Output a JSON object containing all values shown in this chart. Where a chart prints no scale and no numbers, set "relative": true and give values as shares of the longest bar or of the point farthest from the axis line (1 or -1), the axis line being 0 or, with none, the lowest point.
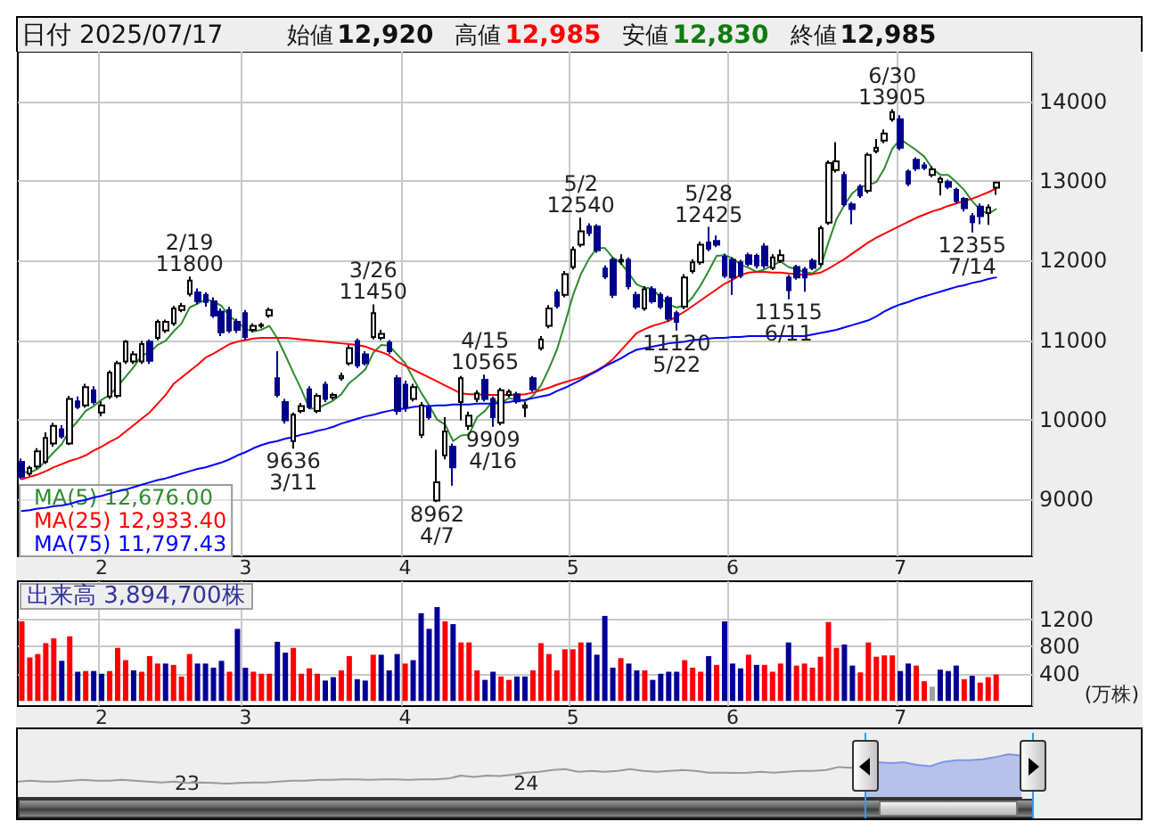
{
  "chart_data": [
    {
      "type": "other",
      "title": "日付 2025/07/17",
      "annotations": [
        "始値",
        "12,920",
        "高値",
        "12,985",
        "安値",
        "12,830",
        "終値",
        "12,985"
      ]
    },
    {
      "type": "candlestick",
      "categories": [
        null,
        null,
        null,
        null,
        null,
        null,
        null,
        null,
        null,
        null,
        "2",
        null,
        null,
        null,
        null,
        null,
        null,
        null,
        null,
        null,
        null,
        null,
        null,
        null,
        null,
        null,
        null,
        null,
        "3",
        null,
        null,
        null,
        null,
        null,
        null,
        null,
        null,
        null,
        null,
        null,
        null,
        null,
        null,
        null,
        null,
        null,
        null,
        null,
        "4",
        null,
        null,
        null,
        null,
        null,
        null,
        null,
        null,
        null,
        null,
        null,
        null,
        null,
        null,
        null,
        null,
        null,
        null,
        null,
        null,
        "5",
        null,
        null,
        null,
        null,
        null,
        null,
        null,
        null,
        null,
        null,
        null,
        null,
        null,
        null,
        null,
        null,
        null,
        null,
        null,
        "6",
        null,
        null,
        null,
        null,
        null,
        null,
        null,
        null,
        null,
        null,
        null,
        null,
        null,
        null,
        null,
        null,
        null,
        null,
        null,
        null,
        "7",
        null,
        null,
        null,
        null,
        null,
        null,
        null,
        null,
        null,
        null,
        null,
        null
      ],
      "ohlc": [
        [
          9470,
          9510,
          9250,
          9280
        ],
        [
          9320,
          9420,
          9290,
          9390
        ],
        [
          9410,
          9640,
          9380,
          9600
        ],
        [
          9470,
          9840,
          9440,
          9770
        ],
        [
          9700,
          9960,
          9660,
          9920
        ],
        [
          9880,
          9930,
          9760,
          9790
        ],
        [
          9700,
          10300,
          9680,
          10260
        ],
        [
          10230,
          10290,
          10130,
          10160
        ],
        [
          10180,
          10450,
          10150,
          10410
        ],
        [
          10370,
          10420,
          10190,
          10220
        ],
        [
          10090,
          10230,
          10040,
          10180
        ],
        [
          10290,
          10620,
          10260,
          10590
        ],
        [
          10300,
          10740,
          10270,
          10710
        ],
        [
          10730,
          11000,
          10700,
          10980
        ],
        [
          10730,
          10860,
          10700,
          10820
        ],
        [
          10730,
          10990,
          10700,
          10950
        ],
        [
          10980,
          11010,
          10700,
          10740
        ],
        [
          11030,
          11260,
          11000,
          11230
        ],
        [
          11120,
          11260,
          11090,
          11230
        ],
        [
          11210,
          11430,
          11180,
          11400
        ],
        [
          11380,
          11470,
          11350,
          11430
        ],
        [
          11580,
          11800,
          11550,
          11750
        ],
        [
          11600,
          11650,
          11450,
          11490
        ],
        [
          11570,
          11600,
          11420,
          11480
        ],
        [
          11490,
          11540,
          11280,
          11310
        ],
        [
          11360,
          11400,
          11050,
          11100
        ],
        [
          11380,
          11420,
          11090,
          11120
        ],
        [
          11230,
          11270,
          11090,
          11130
        ],
        [
          11340,
          11380,
          11000,
          11040
        ],
        [
          11130,
          11210,
          11100,
          11180
        ],
        [
          11180,
          11220,
          11150,
          11190
        ],
        [
          11310,
          11410,
          11280,
          11380
        ],
        [
          10520,
          10860,
          10280,
          10310
        ],
        [
          10220,
          10260,
          9950,
          9990
        ],
        [
          9730,
          10090,
          9636,
          10060
        ],
        [
          10110,
          10210,
          10080,
          10170
        ],
        [
          10380,
          10420,
          10130,
          10160
        ],
        [
          10110,
          10330,
          10080,
          10300
        ],
        [
          10440,
          10480,
          10220,
          10260
        ],
        [
          10280,
          10340,
          10250,
          10310
        ],
        [
          10520,
          10590,
          10490,
          10550
        ],
        [
          10710,
          10940,
          10680,
          10900
        ],
        [
          10990,
          11020,
          10650,
          10680
        ],
        [
          10820,
          10860,
          10680,
          10710
        ],
        [
          11040,
          11450,
          11010,
          11340
        ],
        [
          11030,
          11130,
          11000,
          11080
        ],
        [
          10970,
          11000,
          10830,
          10860
        ],
        [
          10520,
          10560,
          10060,
          10110
        ],
        [
          10440,
          10490,
          10100,
          10150
        ],
        [
          10260,
          10450,
          10230,
          10410
        ],
        [
          9810,
          10220,
          9770,
          10180
        ],
        [
          10150,
          10180,
          10000,
          10030
        ],
        [
          8980,
          9620,
          8962,
          9210
        ],
        [
          9550,
          10030,
          9500,
          9850
        ],
        [
          9660,
          9700,
          9170,
          9400
        ],
        [
          10220,
          10550,
          9990,
          10520
        ],
        [
          9920,
          10100,
          9870,
          10050
        ],
        [
          10260,
          10370,
          10220,
          10330
        ],
        [
          10500,
          10565,
          10230,
          10260
        ],
        [
          10260,
          10290,
          9909,
          10030
        ],
        [
          9960,
          10400,
          9930,
          10370
        ],
        [
          10310,
          10380,
          10280,
          10350
        ],
        [
          10320,
          10350,
          10200,
          10230
        ],
        [
          10150,
          10220,
          10030,
          10180
        ],
        [
          10520,
          10550,
          10350,
          10380
        ],
        [
          10900,
          11050,
          10870,
          11010
        ],
        [
          11180,
          11440,
          11150,
          11400
        ],
        [
          11600,
          11640,
          11400,
          11430
        ],
        [
          11570,
          11870,
          11540,
          11830
        ],
        [
          11920,
          12180,
          11890,
          12140
        ],
        [
          12200,
          12540,
          12170,
          12370
        ],
        [
          12430,
          12470,
          12310,
          12350
        ],
        [
          12430,
          12460,
          12100,
          12130
        ],
        [
          11900,
          11940,
          11770,
          11800
        ],
        [
          12010,
          12040,
          11530,
          11570
        ],
        [
          11990,
          12080,
          11950,
          12010
        ],
        [
          12010,
          12040,
          11640,
          11680
        ],
        [
          11570,
          11610,
          11390,
          11420
        ],
        [
          11400,
          11680,
          11370,
          11640
        ],
        [
          11640,
          11680,
          11460,
          11490
        ],
        [
          11570,
          11600,
          11390,
          11420
        ],
        [
          11530,
          11560,
          11240,
          11270
        ],
        [
          11340,
          11370,
          11120,
          11230
        ],
        [
          11420,
          11830,
          11390,
          11790
        ],
        [
          11870,
          12020,
          11840,
          11980
        ],
        [
          11980,
          12240,
          11950,
          12200
        ],
        [
          12230,
          12425,
          12120,
          12150
        ],
        [
          12250,
          12320,
          12170,
          12200
        ],
        [
          12050,
          12090,
          11780,
          11810
        ],
        [
          12010,
          12040,
          11570,
          11790
        ],
        [
          11980,
          12010,
          11780,
          11810
        ],
        [
          12070,
          12100,
          11930,
          11960
        ],
        [
          12060,
          12090,
          11900,
          11940
        ],
        [
          12180,
          12220,
          11900,
          11940
        ],
        [
          11910,
          12080,
          11880,
          12040
        ],
        [
          12000,
          12140,
          11970,
          12070
        ],
        [
          11790,
          11820,
          11515,
          11630
        ],
        [
          11920,
          11950,
          11760,
          11790
        ],
        [
          11890,
          11920,
          11610,
          11790
        ],
        [
          12000,
          12030,
          11880,
          11910
        ],
        [
          11960,
          12440,
          11930,
          12410
        ],
        [
          12480,
          13260,
          12450,
          13230
        ],
        [
          13140,
          13490,
          13110,
          13250
        ],
        [
          13080,
          13120,
          12680,
          12710
        ],
        [
          12710,
          12740,
          12460,
          12650
        ],
        [
          12930,
          12960,
          12790,
          12820
        ],
        [
          12880,
          13360,
          12850,
          13330
        ],
        [
          13380,
          13530,
          13350,
          13420
        ],
        [
          13510,
          13650,
          13480,
          13600
        ],
        [
          13780,
          13905,
          13750,
          13870
        ],
        [
          13780,
          13830,
          13390,
          13420
        ],
        [
          13120,
          13150,
          12940,
          12970
        ],
        [
          13270,
          13300,
          13130,
          13160
        ],
        [
          13200,
          13240,
          13140,
          13170
        ],
        [
          13080,
          13190,
          13050,
          13150
        ],
        [
          12990,
          13060,
          12820,
          13030
        ],
        [
          12990,
          13020,
          12900,
          12930
        ],
        [
          12890,
          12920,
          12720,
          12750
        ],
        [
          12780,
          12800,
          12620,
          12660
        ],
        [
          12560,
          12600,
          12355,
          12485
        ],
        [
          12680,
          12720,
          12460,
          12560
        ],
        [
          12600,
          12710,
          12450,
          12670
        ],
        [
          12920,
          12985,
          12830,
          12985
        ]
      ],
      "series": [
        {
          "name": "MA(5) 12,676.00",
          "type": "line",
          "color": "#2e8b2e",
          "values": [
            9350,
            9330,
            9380,
            9480,
            9590,
            9690,
            9870,
            9980,
            10110,
            10170,
            10250,
            10310,
            10420,
            10540,
            10660,
            10810,
            10840,
            10940,
            10990,
            11110,
            11210,
            11410,
            11460,
            11510,
            11490,
            11430,
            11300,
            11230,
            11140,
            11110,
            11130,
            11180,
            11020,
            10810,
            10590,
            10380,
            10140,
            10140,
            10190,
            10240,
            10320,
            10460,
            10540,
            10630,
            10840,
            10940,
            10930,
            10820,
            10710,
            10520,
            10340,
            10180,
            10000,
            9940,
            9730,
            9800,
            9810,
            10030,
            10110,
            10240,
            10210,
            10270,
            10250,
            10230,
            10300,
            10430,
            10640,
            10880,
            11210,
            11560,
            11830,
            12020,
            12160,
            12160,
            12040,
            11970,
            11840,
            11700,
            11660,
            11650,
            11530,
            11450,
            11410,
            11440,
            11540,
            11690,
            11870,
            12060,
            12070,
            12030,
            11950,
            11910,
            11860,
            11890,
            11940,
            11990,
            11920,
            11890,
            11860,
            11840,
            11910,
            12230,
            12520,
            12700,
            12850,
            12930,
            12950,
            12990,
            13160,
            13410,
            13530,
            13460,
            13390,
            13310,
            13160,
            13080,
            13080,
            12990,
            12890,
            12750,
            12640,
            12590,
            12650
          ]
        },
        {
          "name": "MA(25) 12,933.40",
          "type": "line",
          "color": "#ff0000",
          "values": [
            9250,
            9280,
            9310,
            9350,
            9400,
            9440,
            9480,
            9510,
            9550,
            9610,
            9660,
            9720,
            9770,
            9850,
            9930,
            10010,
            10090,
            10200,
            10310,
            10450,
            10530,
            10610,
            10690,
            10780,
            10830,
            10890,
            10950,
            10980,
            11000,
            11020,
            11030,
            11030,
            11030,
            11030,
            11020,
            11010,
            11000,
            10990,
            10980,
            10970,
            10960,
            10950,
            10940,
            10920,
            10880,
            10850,
            10810,
            10730,
            10680,
            10630,
            10580,
            10530,
            10480,
            10430,
            10380,
            10330,
            10320,
            10320,
            10310,
            10310,
            10310,
            10310,
            10310,
            10320,
            10340,
            10370,
            10400,
            10440,
            10470,
            10500,
            10530,
            10570,
            10620,
            10680,
            10760,
            10870,
            10980,
            11090,
            11140,
            11180,
            11210,
            11240,
            11300,
            11360,
            11430,
            11500,
            11570,
            11640,
            11710,
            11760,
            11820,
            11850,
            11860,
            11860,
            11850,
            11850,
            11840,
            11830,
            11820,
            11830,
            11850,
            11900,
            11960,
            12020,
            12090,
            12160,
            12230,
            12290,
            12340,
            12390,
            12440,
            12490,
            12540,
            12580,
            12620,
            12650,
            12690,
            12720,
            12750,
            12780,
            12820,
            12860,
            12910
          ]
        },
        {
          "name": "MA(75) 11,797.43",
          "type": "line",
          "color": "#0000ff",
          "values": [
            8850,
            8860,
            8880,
            8890,
            8910,
            8920,
            8940,
            8970,
            8990,
            9020,
            9040,
            9070,
            9100,
            9120,
            9150,
            9180,
            9210,
            9240,
            9260,
            9290,
            9320,
            9350,
            9380,
            9400,
            9430,
            9460,
            9500,
            9550,
            9590,
            9640,
            9680,
            9710,
            9730,
            9760,
            9780,
            9810,
            9830,
            9860,
            9880,
            9910,
            9950,
            9980,
            10010,
            10040,
            10060,
            10090,
            10110,
            10130,
            10140,
            10160,
            10170,
            10170,
            10180,
            10180,
            10190,
            10190,
            10190,
            10200,
            10200,
            10200,
            10210,
            10220,
            10240,
            10250,
            10270,
            10290,
            10310,
            10360,
            10400,
            10450,
            10500,
            10560,
            10610,
            10670,
            10720,
            10770,
            10830,
            10880,
            10900,
            10920,
            10940,
            10960,
            10970,
            10980,
            11000,
            11010,
            11020,
            11030,
            11030,
            11040,
            11040,
            11050,
            11050,
            11050,
            11050,
            11050,
            11050,
            11050,
            11050,
            11070,
            11090,
            11110,
            11130,
            11160,
            11190,
            11220,
            11250,
            11300,
            11360,
            11410,
            11450,
            11480,
            11520,
            11550,
            11580,
            11610,
            11640,
            11670,
            11690,
            11720,
            11740,
            11770,
            11790
          ]
        }
      ],
      "annotations": [
        {
          "text": "2/19\n11800",
          "y": 11800
        },
        {
          "text": "9636\n3/11",
          "y": 9636
        },
        {
          "text": "3/26\n11450",
          "y": 11450
        },
        {
          "text": "8962\n4/7",
          "y": 8962
        },
        {
          "text": "4/15\n10565",
          "y": 10565
        },
        {
          "text": "9909\n4/16",
          "y": 9909
        },
        {
          "text": "5/2\n12540",
          "y": 12540
        },
        {
          "text": "11120\n5/22",
          "y": 11120
        },
        {
          "text": "5/28\n12425",
          "y": 12425
        },
        {
          "text": "11515\n6/11",
          "y": 11515
        },
        {
          "text": "6/30\n13905",
          "y": 13905
        },
        {
          "text": "12355\n7/14",
          "y": 12355
        }
      ],
      "ylim": [
        8280,
        14630
      ],
      "yticks": [
        9000,
        10000,
        11000,
        12000,
        13000,
        14000
      ],
      "grid": true,
      "legend": "bottom left",
      "marker": "none"
    },
    {
      "type": "bar",
      "title": "出来高 3,894,700株",
      "ylabel": "(万株)",
      "categories": [
        null,
        null,
        null,
        null,
        null,
        null,
        null,
        null,
        null,
        null,
        "2",
        null,
        null,
        null,
        null,
        null,
        null,
        null,
        null,
        null,
        null,
        null,
        null,
        null,
        null,
        null,
        null,
        null,
        "3",
        null,
        null,
        null,
        null,
        null,
        null,
        null,
        null,
        null,
        null,
        null,
        null,
        null,
        null,
        null,
        null,
        null,
        null,
        null,
        "4",
        null,
        null,
        null,
        null,
        null,
        null,
        null,
        null,
        null,
        null,
        null,
        null,
        null,
        null,
        null,
        null,
        null,
        null,
        null,
        null,
        "5",
        null,
        null,
        null,
        null,
        null,
        null,
        null,
        null,
        null,
        null,
        null,
        null,
        null,
        null,
        null,
        null,
        null,
        null,
        null,
        "6",
        null,
        null,
        null,
        null,
        null,
        null,
        null,
        null,
        null,
        null,
        null,
        null,
        null,
        null,
        null,
        null,
        null,
        null,
        null,
        null,
        "7",
        null,
        null,
        null,
        null,
        null,
        null,
        null,
        null,
        null,
        null,
        null,
        null
      ],
      "values": [
        1170,
        640,
        690,
        850,
        920,
        590,
        950,
        430,
        440,
        440,
        400,
        440,
        780,
        600,
        450,
        430,
        660,
        550,
        550,
        530,
        360,
        690,
        550,
        550,
        490,
        590,
        430,
        1060,
        490,
        430,
        400,
        400,
        870,
        710,
        780,
        400,
        480,
        400,
        300,
        350,
        450,
        660,
        320,
        300,
        680,
        680,
        450,
        690,
        550,
        600,
        1290,
        1060,
        1380,
        1170,
        1130,
        860,
        860,
        450,
        310,
        430,
        360,
        310,
        360,
        360,
        450,
        850,
        690,
        450,
        760,
        760,
        860,
        860,
        680,
        1250,
        490,
        630,
        550,
        450,
        450,
        310,
        400,
        430,
        430,
        600,
        490,
        430,
        660,
        530,
        1170,
        550,
        480,
        680,
        530,
        530,
        430,
        550,
        860,
        520,
        550,
        490,
        650,
        1160,
        780,
        830,
        520,
        420,
        860,
        650,
        670,
        670,
        440,
        550,
        520,
        290,
        210,
        460,
        440,
        520,
        320,
        370,
        270,
        350,
        389.47
      ],
      "colors": [
        "#ff0000",
        "#ff0000",
        "#ff0000",
        "#ff0000",
        "#ff0000",
        "#000099",
        "#ff0000",
        "#000099",
        "#ff0000",
        "#000099",
        "#000099",
        "#ff0000",
        "#ff0000",
        "#ff0000",
        "#000099",
        "#ff0000",
        "#ff0000",
        "#ff0000",
        "#000099",
        "#ff0000",
        "#ff0000",
        "#ff0000",
        "#000099",
        "#000099",
        "#000099",
        "#000099",
        "#ff0000",
        "#000099",
        "#000099",
        "#ff0000",
        "#ff0000",
        "#ff0000",
        "#000099",
        "#000099",
        "#ff0000",
        "#ff0000",
        "#ff0000",
        "#ff0000",
        "#000099",
        "#000099",
        "#ff0000",
        "#ff0000",
        "#000099",
        "#000099",
        "#ff0000",
        "#000099",
        "#000099",
        "#000099",
        "#ff0000",
        "#000099",
        "#000099",
        "#000099",
        "#000099",
        "#ff0000",
        "#000099",
        "#ff0000",
        "#ff0000",
        "#ff0000",
        "#000099",
        "#000099",
        "#ff0000",
        "#ff0000",
        "#000099",
        "#000099",
        "#ff0000",
        "#ff0000",
        "#ff0000",
        "#ff0000",
        "#ff0000",
        "#ff0000",
        "#ff0000",
        "#000099",
        "#000099",
        "#000099",
        "#000099",
        "#ff0000",
        "#000099",
        "#000099",
        "#ff0000",
        "#000099",
        "#000099",
        "#000099",
        "#000099",
        "#ff0000",
        "#ff0000",
        "#ff0000",
        "#000099",
        "#ff0000",
        "#000099",
        "#000099",
        "#000099",
        "#ff0000",
        "#000099",
        "#ff0000",
        "#ff0000",
        "#ff0000",
        "#000099",
        "#ff0000",
        "#ff0000",
        "#ff0000",
        "#ff0000",
        "#ff0000",
        "#ff0000",
        "#000099",
        "#000099",
        "#ff0000",
        "#ff0000",
        "#ff0000",
        "#ff0000",
        "#ff0000",
        "#000099",
        "#000099",
        "#ff0000",
        "#ff0000",
        "#a0a0a0",
        "#000099",
        "#000099",
        "#000099",
        "#ff0000",
        "#000099",
        "#ff0000",
        "#ff0000",
        "#ff0000"
      ],
      "ylim": [
        -75,
        1760
      ],
      "yticks": [
        400,
        800,
        1200
      ],
      "grid": true
    },
    {
      "type": "line",
      "relative": true,
      "categories": [
        null,
        null,
        null,
        null,
        null,
        null,
        null,
        null,
        null,
        null,
        null,
        null,
        null,
        "23",
        null,
        null,
        null,
        null,
        null,
        null,
        null,
        null,
        null,
        null,
        null,
        null,
        null,
        null,
        null,
        null,
        null,
        null,
        null,
        null,
        null,
        null,
        null,
        null,
        null,
        "24",
        null,
        null,
        null,
        null,
        null,
        null,
        null,
        null,
        null,
        null,
        null,
        null,
        null,
        null,
        null,
        null,
        null,
        null,
        null,
        null,
        null,
        null,
        null,
        null,
        null,
        null,
        null,
        null,
        null,
        null,
        null,
        null,
        null,
        null,
        null,
        null,
        null,
        null
      ],
      "series": [
        {
          "color": "#999999",
          "values": [
            0.36,
            0.38,
            0.36,
            0.36,
            0.38,
            0.4,
            0.38,
            0.38,
            0.4,
            0.38,
            0.36,
            0.34,
            0.36,
            0.33,
            0.34,
            0.33,
            0.31,
            0.33,
            0.34,
            0.34,
            0.36,
            0.38,
            0.38,
            0.4,
            0.4,
            0.41,
            0.41,
            0.4,
            0.41,
            0.41,
            0.4,
            0.41,
            0.41,
            0.43,
            0.5,
            0.47,
            0.5,
            0.49,
            0.52,
            0.57,
            0.59,
            0.63,
            0.65,
            0.59,
            0.61,
            0.59,
            0.61,
            0.65,
            0.61,
            0.59,
            0.61,
            0.63,
            0.61,
            0.57,
            0.57,
            0.56,
            0.57,
            0.59,
            0.57,
            0.59,
            0.61,
            0.61,
            0.63,
            0.7,
            0.68,
            0.75,
            null,
            null,
            null,
            null,
            null,
            null,
            null,
            null,
            null,
            null,
            null,
            null
          ]
        },
        {
          "type": "area",
          "color": "#8095e8",
          "values": [
            null,
            null,
            null,
            null,
            null,
            null,
            null,
            null,
            null,
            null,
            null,
            null,
            null,
            null,
            null,
            null,
            null,
            null,
            null,
            null,
            null,
            null,
            null,
            null,
            null,
            null,
            null,
            null,
            null,
            null,
            null,
            null,
            null,
            null,
            null,
            null,
            null,
            null,
            null,
            null,
            null,
            null,
            null,
            null,
            null,
            null,
            null,
            null,
            null,
            null,
            null,
            null,
            null,
            null,
            null,
            null,
            null,
            null,
            null,
            null,
            null,
            null,
            null,
            null,
            null,
            0.75,
            0.81,
            0.79,
            0.81,
            0.75,
            0.72,
            0.82,
            0.86,
            0.86,
            0.88,
            0.93,
            1,
            0.97
          ]
        }
      ]
    }
  ]
}
